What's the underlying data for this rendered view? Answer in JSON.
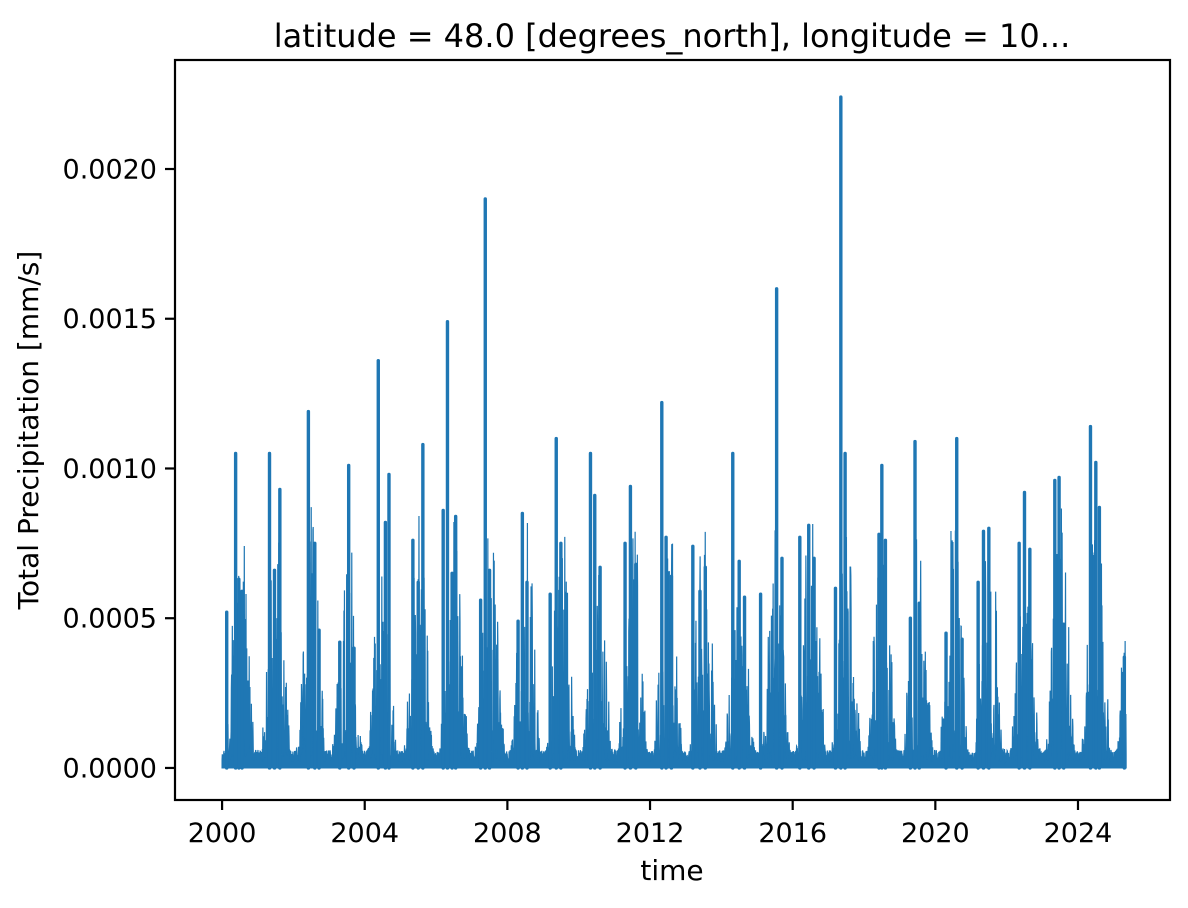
{
  "figure": {
    "background": "#ffffff"
  },
  "chart_data": {
    "type": "line",
    "title": "latitude = 48.0 [degrees_north], longitude = 10...",
    "xlabel": "time",
    "ylabel": "Total Precipitation [mm/s]",
    "series_name": "Total Precipitation",
    "series_color": "#1f77b4",
    "axis_color": "#000000",
    "grid": false,
    "legend": false,
    "x_ticks": [
      2000,
      2004,
      2008,
      2012,
      2016,
      2020,
      2024
    ],
    "y_ticks": [
      0.0,
      0.0005,
      0.001,
      0.0015,
      0.002
    ],
    "y_tick_labels": [
      "0.0000",
      "0.0005",
      "0.0010",
      "0.0015",
      "0.0020"
    ],
    "x_range": [
      1998.68,
      2026.58
    ],
    "y_range": [
      -0.000107,
      0.002364
    ],
    "data_start": 2000.0,
    "data_end": 2025.35,
    "max_value": 0.00224,
    "max_value_time": 2017.35,
    "seasonal_peaks": [
      [
        2000.13,
        0.00052
      ],
      [
        2000.38,
        0.00105
      ],
      [
        2000.47,
        0.00063
      ],
      [
        2000.56,
        0.00059
      ],
      [
        2001.33,
        0.00105
      ],
      [
        2001.47,
        0.00066
      ],
      [
        2001.62,
        0.00093
      ],
      [
        2002.42,
        0.00119
      ],
      [
        2002.6,
        0.00075
      ],
      [
        2002.72,
        0.00046
      ],
      [
        2003.3,
        0.00042
      ],
      [
        2003.55,
        0.00101
      ],
      [
        2003.7,
        0.0004
      ],
      [
        2004.38,
        0.00136
      ],
      [
        2004.58,
        0.00082
      ],
      [
        2004.68,
        0.00098
      ],
      [
        2005.35,
        0.00076
      ],
      [
        2005.5,
        0.00062
      ],
      [
        2005.63,
        0.00108
      ],
      [
        2006.2,
        0.00086
      ],
      [
        2006.32,
        0.00149
      ],
      [
        2006.45,
        0.00065
      ],
      [
        2006.55,
        0.00084
      ],
      [
        2007.25,
        0.00056
      ],
      [
        2007.38,
        0.0019
      ],
      [
        2007.5,
        0.00066
      ],
      [
        2008.3,
        0.00049
      ],
      [
        2008.42,
        0.00085
      ],
      [
        2008.55,
        0.00062
      ],
      [
        2009.2,
        0.00058
      ],
      [
        2009.37,
        0.0011
      ],
      [
        2009.5,
        0.00075
      ],
      [
        2010.33,
        0.00105
      ],
      [
        2010.45,
        0.00091
      ],
      [
        2010.6,
        0.00067
      ],
      [
        2011.3,
        0.00075
      ],
      [
        2011.45,
        0.00094
      ],
      [
        2011.6,
        0.00068
      ],
      [
        2012.33,
        0.00122
      ],
      [
        2012.45,
        0.00077
      ],
      [
        2012.6,
        0.00064
      ],
      [
        2013.2,
        0.00074
      ],
      [
        2013.4,
        0.00059
      ],
      [
        2013.55,
        0.00067
      ],
      [
        2014.32,
        0.00105
      ],
      [
        2014.5,
        0.00069
      ],
      [
        2014.65,
        0.00057
      ],
      [
        2015.1,
        0.00058
      ],
      [
        2015.55,
        0.0016
      ],
      [
        2015.7,
        0.0007
      ],
      [
        2016.2,
        0.00077
      ],
      [
        2016.45,
        0.00081
      ],
      [
        2016.6,
        0.0007
      ],
      [
        2017.2,
        0.0006
      ],
      [
        2017.35,
        0.00224
      ],
      [
        2017.47,
        0.00105
      ],
      [
        2018.42,
        0.00078
      ],
      [
        2018.5,
        0.00101
      ],
      [
        2018.6,
        0.00076
      ],
      [
        2019.3,
        0.0005
      ],
      [
        2019.43,
        0.00109
      ],
      [
        2019.55,
        0.00055
      ],
      [
        2020.3,
        0.00045
      ],
      [
        2020.6,
        0.0011
      ],
      [
        2020.75,
        0.00043
      ],
      [
        2021.2,
        0.00062
      ],
      [
        2021.35,
        0.00079
      ],
      [
        2021.5,
        0.0008
      ],
      [
        2022.35,
        0.00075
      ],
      [
        2022.5,
        0.00092
      ],
      [
        2022.65,
        0.00073
      ],
      [
        2023.35,
        0.00096
      ],
      [
        2023.47,
        0.00097
      ],
      [
        2023.6,
        0.00048
      ],
      [
        2024.35,
        0.00114
      ],
      [
        2024.5,
        0.00102
      ],
      [
        2024.6,
        0.00087
      ],
      [
        2025.3,
        0.00037
      ]
    ],
    "noise": {
      "seed": 1337,
      "samples_per_year": 146,
      "winter_min": 4e-05,
      "summer_amp": 0.00048,
      "season_start": 0.07,
      "season_len": 0.88,
      "envelope_power": 1.6,
      "spike_power": 3.2,
      "gain": 1.75
    }
  }
}
